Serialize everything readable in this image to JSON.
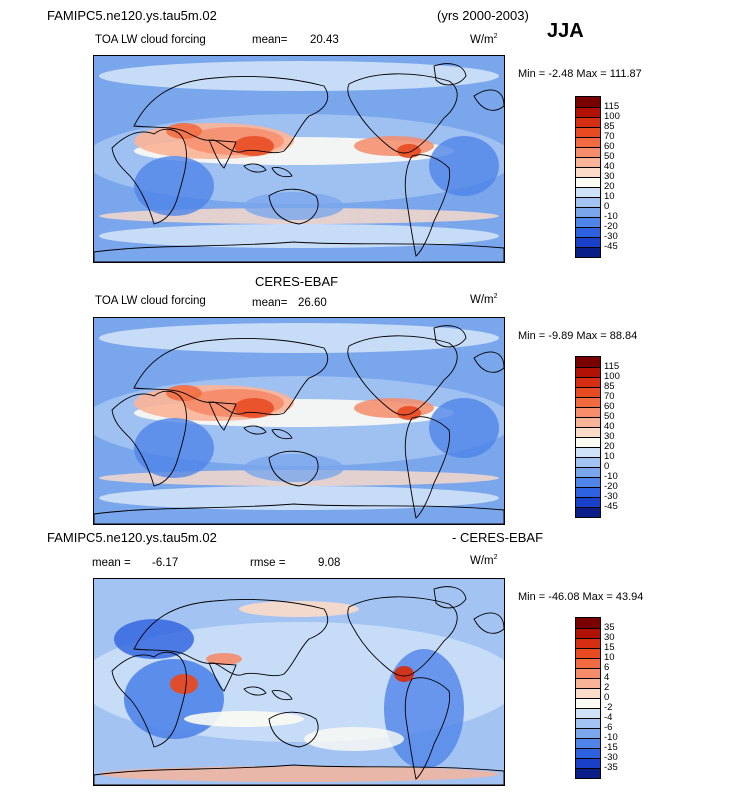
{
  "page": {
    "title_left": "FAMIPC5.ne120.ys.tau5m.02",
    "years": "(yrs 2000-2003)",
    "season": "JJA"
  },
  "panels": [
    {
      "heading": "",
      "variable": "TOA LW cloud forcing",
      "mean_label": "mean=",
      "mean": "20.43",
      "units_base": "W/m",
      "units_exp": "2",
      "min_label": "Min =",
      "min": "-2.48",
      "max_label": "Max =",
      "max": "111.87",
      "colorbar": {
        "labels": [
          "115",
          "100",
          "85",
          "70",
          "60",
          "50",
          "40",
          "30",
          "20",
          "10",
          "0",
          "-10",
          "-20",
          "-30",
          "-45"
        ],
        "colors": [
          "#7a0000",
          "#b21206",
          "#d52e12",
          "#e84a22",
          "#f26a3f",
          "#f68c6a",
          "#f9b497",
          "#fcdcc8",
          "#fbfbf3",
          "#cfe2f8",
          "#a3c4f2",
          "#7aa6ec",
          "#4f84e8",
          "#2c62df",
          "#1840c8",
          "#0a1e88"
        ]
      },
      "map_style": "model"
    },
    {
      "heading": "CERES-EBAF",
      "variable": "TOA LW cloud forcing",
      "mean_label": "mean=",
      "mean": "26.60",
      "units_base": "W/m",
      "units_exp": "2",
      "min_label": "Min =",
      "min": "-9.89",
      "max_label": "Max =",
      "max": "88.84",
      "colorbar": {
        "labels": [
          "115",
          "100",
          "85",
          "70",
          "60",
          "50",
          "40",
          "30",
          "20",
          "10",
          "0",
          "-10",
          "-20",
          "-30",
          "-45"
        ],
        "colors": [
          "#7a0000",
          "#b21206",
          "#d52e12",
          "#e84a22",
          "#f26a3f",
          "#f68c6a",
          "#f9b497",
          "#fcdcc8",
          "#fbfbf3",
          "#cfe2f8",
          "#a3c4f2",
          "#7aa6ec",
          "#4f84e8",
          "#2c62df",
          "#1840c8",
          "#0a1e88"
        ]
      },
      "map_style": "obs"
    },
    {
      "heading_left": "FAMIPC5.ne120.ys.tau5m.02",
      "heading_right": "- CERES-EBAF",
      "mean_label": "mean =",
      "mean": "-6.17",
      "rmse_label": "rmse =",
      "rmse": "9.08",
      "units_base": "W/m",
      "units_exp": "2",
      "min_label": "Min =",
      "min": "-46.08",
      "max_label": "Max =",
      "max": "43.94",
      "colorbar": {
        "labels": [
          "35",
          "30",
          "15",
          "10",
          "6",
          "4",
          "2",
          "0",
          "-2",
          "-4",
          "-6",
          "-10",
          "-15",
          "-30",
          "-35"
        ],
        "colors": [
          "#7a0000",
          "#b21206",
          "#d52e12",
          "#e84a22",
          "#f26a3f",
          "#f68c6a",
          "#f9b497",
          "#fcdcc8",
          "#fbfbf3",
          "#cfe2f8",
          "#a3c4f2",
          "#7aa6ec",
          "#4f84e8",
          "#2c62df",
          "#1840c8",
          "#0a1e88"
        ]
      },
      "map_style": "diff"
    }
  ]
}
